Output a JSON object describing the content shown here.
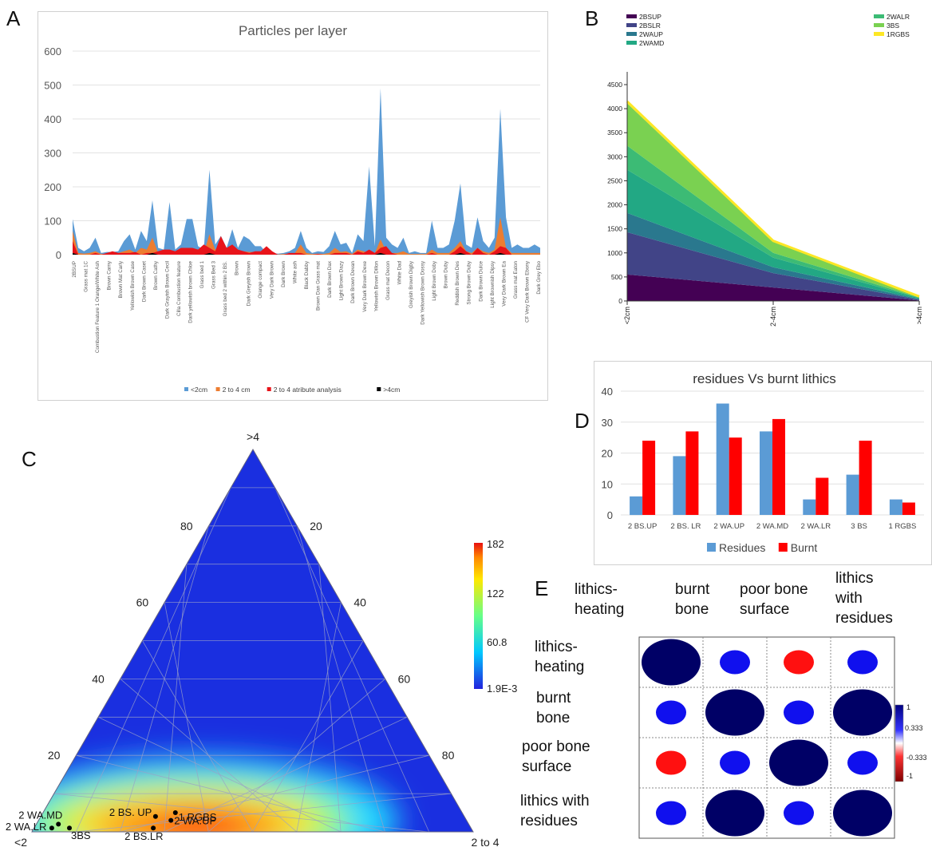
{
  "panels": {
    "A": "A",
    "B": "B",
    "C": "C",
    "D": "D",
    "E": "E"
  },
  "chart_data": [
    {
      "id": "A",
      "type": "area",
      "title": "Particles per layer",
      "ylim": [
        0,
        600
      ],
      "yticks": [
        0,
        100,
        200,
        300,
        400,
        500,
        600
      ],
      "grid": true,
      "legend_position": "bottom",
      "tick_labels": [
        "2BSUP",
        "Grass mat 1C",
        "Combustion Feature 1 Orange/White Ash",
        "Brown Carny",
        "Brown Mat Carly",
        "Yellowish Brown Case",
        "Dark Brown Caset",
        "Brown Cathy",
        "Dark Grayish Brown Cecil",
        "Cilla Combustion feature",
        "Dark yellowish brown Chloe",
        "Grass bed 1",
        "Grass Bed 3",
        "Grass bed 2 within 2 BS.",
        "Brown",
        "Dark Greyish Brown",
        "Orange compact",
        "Very Dark Brown",
        "Dark Brown",
        "White ash",
        "Black Dabby",
        "Brown Dan Grass mat",
        "Dark Brown Dax",
        "Light Brown Dazy",
        "Dark Brown Devan",
        "Very Dark Brown Dexe",
        "Yellowish Brown Dillon",
        "Grass mat Decon",
        "White Dad",
        "Greyish Brown Digby",
        "Dark Yellowish Brown Dossy",
        "Light Brown Doby",
        "Brown Duby",
        "Reddish Brown Des",
        "Strong Brown Duby",
        "Dark Brown Dulce",
        "Light Brownish Dipsy",
        "Very Dark Brown Ea",
        "Grass mat Eaton",
        "CF Very Dark Brown Ebony",
        "Dark Grey Ebo"
      ],
      "n_points": 83,
      "series": [
        {
          "name": "<2cm",
          "color": "#5b9bd5",
          "values": [
            105,
            20,
            10,
            20,
            50,
            5,
            8,
            8,
            10,
            40,
            60,
            15,
            70,
            40,
            160,
            20,
            15,
            155,
            15,
            30,
            105,
            105,
            25,
            15,
            250,
            30,
            55,
            20,
            75,
            20,
            55,
            45,
            25,
            25,
            5,
            5,
            3,
            5,
            10,
            20,
            70,
            20,
            5,
            10,
            8,
            25,
            70,
            30,
            35,
            5,
            60,
            40,
            260,
            25,
            490,
            50,
            30,
            20,
            50,
            5,
            10,
            5,
            5,
            100,
            20,
            20,
            30,
            100,
            210,
            30,
            20,
            110,
            40,
            20,
            50,
            430,
            110,
            20,
            30,
            20,
            20,
            30,
            20
          ]
        },
        {
          "name": "2 to 4 cm",
          "color": "#ed7d31",
          "values": [
            70,
            5,
            3,
            5,
            10,
            2,
            3,
            2,
            5,
            10,
            15,
            5,
            20,
            15,
            50,
            5,
            5,
            10,
            5,
            10,
            15,
            15,
            5,
            5,
            60,
            15,
            20,
            5,
            15,
            5,
            10,
            8,
            8,
            5,
            2,
            2,
            1,
            2,
            3,
            5,
            30,
            5,
            2,
            3,
            2,
            5,
            20,
            8,
            10,
            2,
            15,
            10,
            5,
            5,
            45,
            10,
            5,
            5,
            10,
            2,
            2,
            2,
            2,
            15,
            5,
            5,
            5,
            20,
            40,
            10,
            5,
            20,
            10,
            5,
            15,
            110,
            20,
            5,
            5,
            5,
            5,
            5,
            5
          ]
        },
        {
          "name": "2 to 4 atribute analysis",
          "color": "#e8141a",
          "values": [
            40,
            0,
            0,
            0,
            5,
            0,
            5,
            10,
            5,
            5,
            5,
            8,
            0,
            5,
            5,
            10,
            15,
            15,
            10,
            20,
            20,
            20,
            15,
            30,
            20,
            10,
            55,
            20,
            30,
            15,
            10,
            5,
            10,
            10,
            25,
            10,
            0,
            0,
            5,
            5,
            5,
            0,
            0,
            2,
            0,
            0,
            5,
            5,
            5,
            0,
            10,
            5,
            15,
            5,
            20,
            25,
            5,
            0,
            0,
            0,
            0,
            0,
            0,
            5,
            0,
            0,
            0,
            10,
            25,
            10,
            0,
            20,
            5,
            0,
            10,
            25,
            20,
            0,
            0,
            0,
            0,
            0,
            0
          ]
        },
        {
          "name": ">4cm",
          "color": "#000000",
          "values": [
            5,
            0,
            0,
            0,
            0,
            0,
            0,
            0,
            0,
            0,
            0,
            0,
            0,
            0,
            5,
            0,
            0,
            0,
            0,
            0,
            0,
            0,
            0,
            0,
            5,
            0,
            0,
            0,
            0,
            0,
            0,
            0,
            0,
            0,
            0,
            0,
            0,
            0,
            0,
            0,
            0,
            0,
            0,
            0,
            0,
            0,
            0,
            0,
            0,
            0,
            0,
            0,
            0,
            0,
            5,
            0,
            0,
            0,
            0,
            0,
            0,
            0,
            0,
            0,
            0,
            0,
            0,
            0,
            5,
            0,
            0,
            0,
            0,
            0,
            0,
            5,
            0,
            0,
            0,
            0,
            0,
            0,
            0
          ]
        }
      ]
    },
    {
      "id": "B",
      "type": "area",
      "stacked": true,
      "x": [
        "<2cm",
        "2-4cm",
        ">4cm"
      ],
      "ylim": [
        0,
        4500
      ],
      "yticks": [
        0,
        500,
        1000,
        1500,
        2000,
        2500,
        3000,
        3500,
        4000,
        4500
      ],
      "legend_position": "top",
      "series": [
        {
          "name": "2BSUP",
          "color": "#440154",
          "values": [
            550,
            280,
            10
          ]
        },
        {
          "name": "2BSLR",
          "color": "#414487",
          "values": [
            880,
            300,
            15
          ]
        },
        {
          "name": "2WAUP",
          "color": "#2a788e",
          "values": [
            400,
            120,
            15
          ]
        },
        {
          "name": "2WAMD",
          "color": "#22a884",
          "values": [
            900,
            200,
            20
          ]
        },
        {
          "name": "2WALR",
          "color": "#3cbb75",
          "values": [
            500,
            100,
            10
          ]
        },
        {
          "name": "3BS",
          "color": "#7ad151",
          "values": [
            880,
            230,
            20
          ]
        },
        {
          "name": "1RGBS",
          "color": "#fde725",
          "values": [
            40,
            20,
            5
          ]
        }
      ]
    },
    {
      "id": "C",
      "type": "heatmap",
      "subtype": "ternary",
      "vertices": {
        "top": ">4",
        "left": "<2",
        "right": "2 to 4"
      },
      "left_axis_ticks": [
        "20",
        "40",
        "60",
        "80"
      ],
      "right_axis_ticks": [
        "20",
        "40",
        "60",
        "80"
      ],
      "colorbar": {
        "labels": [
          "182",
          "122",
          "60.8",
          "1.9E-3"
        ],
        "max": 182,
        "min": 0.0019
      },
      "points": [
        {
          "label": "2 WA.MD",
          "lt2": 93,
          "gt4": 2
        },
        {
          "label": "2 WA.LR",
          "lt2": 95,
          "gt4": 1
        },
        {
          "label": "3BS",
          "lt2": 91,
          "gt4": 1
        },
        {
          "label": "2 BS. UP",
          "lt2": 70,
          "gt4": 4
        },
        {
          "label": "2 BS.LR",
          "lt2": 72,
          "gt4": 1
        },
        {
          "label": "2 WA.UP",
          "lt2": 67,
          "gt4": 3
        },
        {
          "label": "1 RGBS",
          "lt2": 65,
          "gt4": 5
        }
      ]
    },
    {
      "id": "D",
      "type": "bar",
      "title": "residues Vs burnt lithics",
      "categories": [
        "2 BS.UP",
        "2 BS. LR",
        "2 WA.UP",
        "2 WA.MD",
        "2 WA.LR",
        "3 BS",
        "1 RGBS"
      ],
      "ylim": [
        0,
        40
      ],
      "yticks": [
        0,
        10,
        20,
        30,
        40
      ],
      "legend_position": "bottom",
      "series": [
        {
          "name": "Residues",
          "color": "#5b9bd5",
          "values": [
            6,
            19,
            36,
            27,
            5,
            13,
            5
          ]
        },
        {
          "name": "Burnt",
          "color": "#ff0000",
          "values": [
            24,
            27,
            25,
            31,
            12,
            24,
            4
          ]
        }
      ]
    },
    {
      "id": "E",
      "type": "heatmap",
      "subtype": "correlation",
      "col_labels": [
        "lithics- heating",
        "burnt bone",
        "poor bone surface",
        "lithics with residues"
      ],
      "row_labels": [
        "lithics- heating",
        "burnt bone",
        "poor bone surface",
        "lithics with residues"
      ],
      "matrix": [
        [
          1,
          0.4,
          -0.45,
          0.4
        ],
        [
          0.4,
          1,
          0.4,
          1
        ],
        [
          -0.45,
          0.4,
          1,
          0.4
        ],
        [
          0.4,
          1,
          0.4,
          1
        ]
      ],
      "colorbar": {
        "labels": [
          "1",
          "0.333",
          "-0.333",
          "-1"
        ]
      }
    }
  ]
}
